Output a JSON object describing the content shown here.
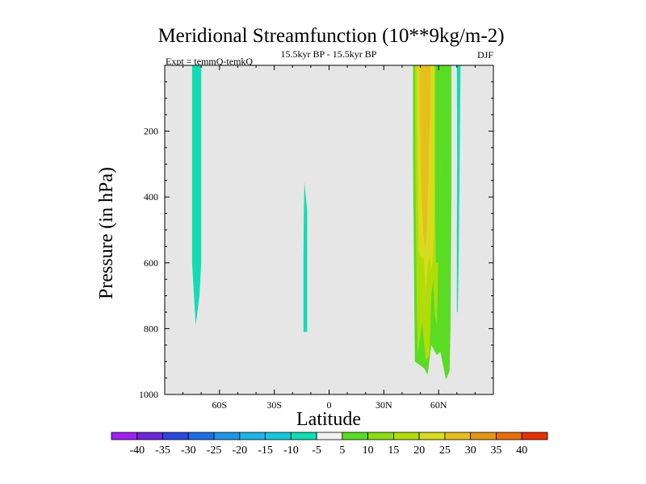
{
  "chart_data": {
    "type": "contour",
    "title": "Meridional Streamfunction (10**9kg/m-2)",
    "left_label": "Expt = temmQ-temkQ",
    "center_label": "15.5kyr BP - 15.5kyr BP",
    "right_label": "DJF",
    "xlabel": "Latitude",
    "ylabel": "Pressure (in hPa)",
    "xlim": [
      -90,
      90
    ],
    "ylim": [
      0,
      1000
    ],
    "y_inverted": true,
    "x_ticks": [
      {
        "value": -60,
        "label": "60S"
      },
      {
        "value": -30,
        "label": "30S"
      },
      {
        "value": 0,
        "label": "0"
      },
      {
        "value": 30,
        "label": "30N"
      },
      {
        "value": 60,
        "label": "60N"
      }
    ],
    "y_ticks": [
      {
        "value": 200,
        "label": "200"
      },
      {
        "value": 400,
        "label": "400"
      },
      {
        "value": 600,
        "label": "600"
      },
      {
        "value": 800,
        "label": "800"
      },
      {
        "value": 1000,
        "label": "1000"
      }
    ],
    "background_fill": "#e6e6e6",
    "regions": [
      {
        "name": "band-70s",
        "color": "#12dcb4",
        "points": [
          [
            -75,
            0
          ],
          [
            -70,
            0
          ],
          [
            -70,
            300
          ],
          [
            -70,
            600
          ],
          [
            -71,
            700
          ],
          [
            -73,
            790
          ],
          [
            -74,
            700
          ],
          [
            -75,
            600
          ],
          [
            -75,
            300
          ]
        ]
      },
      {
        "name": "band-12s",
        "color": "#12dcb4",
        "points": [
          [
            -13.5,
            355
          ],
          [
            -12,
            440
          ],
          [
            -12,
            810
          ],
          [
            -14,
            810
          ],
          [
            -14,
            580
          ],
          [
            -13.8,
            440
          ]
        ]
      },
      {
        "name": "nh-green-outer",
        "color": "#59dc23",
        "points": [
          [
            46,
            0
          ],
          [
            67,
            0
          ],
          [
            67,
            400
          ],
          [
            66.5,
            800
          ],
          [
            66,
            930
          ],
          [
            64,
            955
          ],
          [
            61,
            870
          ],
          [
            59,
            880
          ],
          [
            56,
            850
          ],
          [
            54,
            940
          ],
          [
            52,
            920
          ],
          [
            47,
            900
          ],
          [
            46.5,
            600
          ],
          [
            46,
            300
          ]
        ]
      },
      {
        "name": "nh-yellowgreen",
        "color": "#b0dc0a",
        "points": [
          [
            47,
            0
          ],
          [
            61,
            0
          ],
          [
            61,
            300
          ],
          [
            60.5,
            450
          ],
          [
            59.8,
            600
          ],
          [
            59.5,
            700
          ],
          [
            59,
            790
          ],
          [
            58,
            760
          ],
          [
            57,
            650
          ],
          [
            56,
            700
          ],
          [
            55,
            880
          ],
          [
            53,
            900
          ],
          [
            51,
            780
          ],
          [
            48.5,
            880
          ],
          [
            48,
            700
          ],
          [
            47.3,
            400
          ]
        ]
      },
      {
        "name": "nh-yellow",
        "color": "#d7dc1e",
        "points": [
          [
            48,
            0
          ],
          [
            59,
            0
          ],
          [
            59,
            200
          ],
          [
            58.5,
            350
          ],
          [
            57.5,
            480
          ],
          [
            57,
            580
          ],
          [
            56,
            620
          ],
          [
            55,
            580
          ],
          [
            54,
            610
          ],
          [
            53,
            700
          ],
          [
            52,
            590
          ],
          [
            50,
            580
          ],
          [
            49,
            560
          ],
          [
            48.5,
            300
          ]
        ]
      },
      {
        "name": "nh-orange-core",
        "color": "#e6be1e",
        "points": [
          [
            49.5,
            0
          ],
          [
            55.5,
            0
          ],
          [
            55.3,
            150
          ],
          [
            54.8,
            250
          ],
          [
            54.3,
            360
          ],
          [
            53.6,
            480
          ],
          [
            52.8,
            560
          ],
          [
            51.8,
            520
          ],
          [
            51,
            440
          ],
          [
            50.3,
            300
          ],
          [
            49.8,
            150
          ]
        ]
      },
      {
        "name": "nh-green-60n",
        "color": "#59dc23",
        "points": [
          [
            58,
            0
          ],
          [
            61.3,
            0
          ],
          [
            61,
            300
          ],
          [
            60.3,
            500
          ],
          [
            60,
            600
          ],
          [
            58.5,
            600
          ],
          [
            58,
            400
          ]
        ]
      },
      {
        "name": "band-72n",
        "color": "#12dcb4",
        "points": [
          [
            70,
            0
          ],
          [
            72,
            0
          ],
          [
            71.5,
            300
          ],
          [
            71,
            600
          ],
          [
            70.5,
            750
          ],
          [
            70,
            750
          ],
          [
            70,
            500
          ],
          [
            70.2,
            300
          ]
        ]
      }
    ],
    "colorbar": {
      "levels": [
        -40,
        -35,
        -30,
        -25,
        -20,
        -15,
        -10,
        -5,
        5,
        10,
        15,
        20,
        25,
        30,
        35,
        40
      ],
      "colors": [
        "#a020f0",
        "#6e28d6",
        "#2d46dc",
        "#1e6ee6",
        "#1e96e6",
        "#1eb4e6",
        "#14c8dc",
        "#12dcb4",
        "#f2f2f2",
        "#59dc23",
        "#8cdc14",
        "#b0dc0a",
        "#d7dc1e",
        "#e6be1e",
        "#e69614",
        "#e66e0a",
        "#e63200"
      ]
    }
  }
}
